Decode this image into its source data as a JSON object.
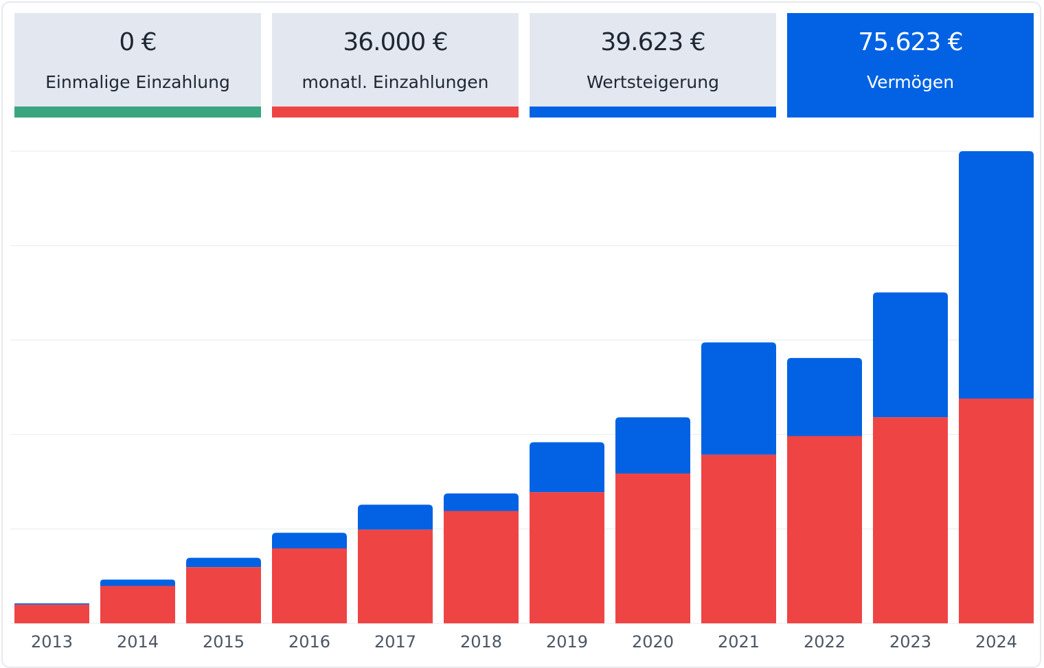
{
  "summary": {
    "cards": [
      {
        "value": "0 €",
        "label": "Einmalige Einzahlung",
        "color": "#3aa57e"
      },
      {
        "value": "36.000 €",
        "label": "monatl. Einzahlungen",
        "color": "#ef4444"
      },
      {
        "value": "39.623 €",
        "label": "Wertsteigerung",
        "color": "#0262e3"
      },
      {
        "value": "75.623 €",
        "label": "Vermögen",
        "color": "#0262e3",
        "active": true
      }
    ]
  },
  "colors": {
    "deposits": "#ef4444",
    "growth": "#0262e3",
    "grid": "#eef0f3",
    "tick": "#4b5563"
  },
  "chart_data": {
    "type": "bar",
    "stacked": true,
    "categories": [
      "2013",
      "2014",
      "2015",
      "2016",
      "2017",
      "2018",
      "2019",
      "2020",
      "2021",
      "2022",
      "2023",
      "2024"
    ],
    "series": [
      {
        "name": "monatl. Einzahlungen",
        "values": [
          3000,
          6000,
          9000,
          12000,
          15000,
          18000,
          21000,
          24000,
          27000,
          30000,
          33000,
          36000
        ]
      },
      {
        "name": "Wertsteigerung",
        "values": [
          200,
          1000,
          1500,
          2500,
          4000,
          2800,
          8000,
          9000,
          18000,
          12500,
          20000,
          39623
        ]
      }
    ],
    "ylim": [
      0,
      75623
    ],
    "grid": true,
    "ytick_count": 5,
    "title": "",
    "xlabel": "",
    "ylabel": ""
  }
}
